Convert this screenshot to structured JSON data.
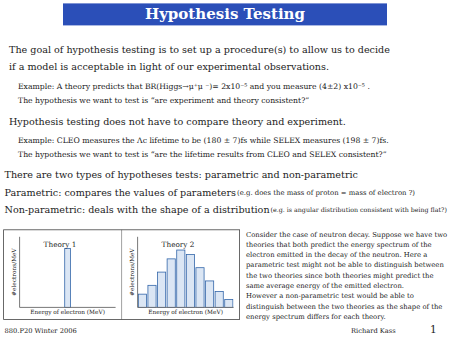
{
  "title": "Hypothesis Testing",
  "annotations": [
    "The goal of hypothesis testing is to set up a procedure(s) to allow us to decide",
    "if a model is acceptable in light of our experimental observations.",
    "Example:   A theory predicts that BR(Higgs→μ⁺μ ⁻)= 2x10⁻⁵ and you measure  (4±2) x10⁻⁵ .",
    "The hypothesis we want to test is “are  experiment and theory consistent?”",
    "Hypothesis testing does not have to compare theory and experiment.",
    "Example:   CLEO measures the Λc lifetime to be (180 ± 7)fs while SELEX measures (198 ± 7)fs.",
    "The hypothesis we want to test is “are  the lifetime results from CLEO and SELEX consistent?”",
    "There are two types of hypotheses tests: parametric and non-parametric",
    "Parametric: compares the values of parameters",
    " (e.g. does the mass of proton = mass of electron ?)",
    "Non-parametric: deals with the shape of a distribution",
    "  (e.g. is angular distribution consistent with being flat?)",
    "Consider the case of neutron decay. Suppose we have two\ntheories that both predict the energy spectrum of the\nelectron emitted in the decay of the neutron. Here a\nparametric test might not be able to distinguish between\nthe two theories since both theories might predict the\nsame average energy of the emitted electron.\nHowever a non-parametric test would be able to\ndistinguish between the two theories as the shape of the\nenergy spectrum differs for each theory.",
    "880.P20 Winter 2006",
    "Richard Kass",
    "1"
  ],
  "chart_data": [
    {
      "type": "bar",
      "title": "Theory 1",
      "x_label": "Energy of electron (MeV)",
      "y_label": "#electrons/MeV",
      "x": [
        5
      ],
      "values": [
        10
      ],
      "xlim": [
        0,
        10
      ],
      "ylim": [
        0,
        12
      ],
      "tick_labels": false
    },
    {
      "type": "bar",
      "title": "Theory 2",
      "x_label": "Energy of electron (MeV)",
      "y_label": "#electrons/MeV",
      "categories": [
        null,
        null,
        null,
        null,
        null,
        null,
        null,
        null,
        null,
        null
      ],
      "values": [
        1.5,
        2.5,
        4.0,
        5.5,
        6.5,
        6.0,
        4.5,
        3.0,
        1.8,
        0.9
      ],
      "ylim": [
        0,
        8
      ],
      "tick_labels": false
    }
  ]
}
